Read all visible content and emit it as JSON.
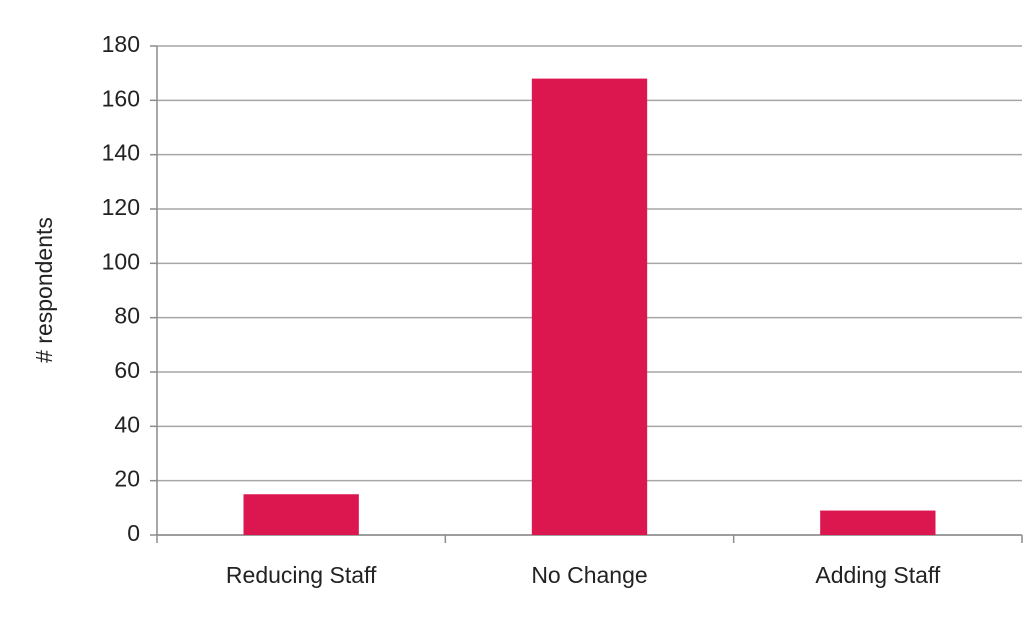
{
  "chart_data": {
    "type": "bar",
    "y_label": "# respondents",
    "categories": [
      "Reducing Staff",
      "No Change",
      "Adding Staff"
    ],
    "values": [
      15,
      168,
      9
    ],
    "color": "#dc1750",
    "ylim": [
      0,
      180
    ],
    "yticks": [
      0,
      20,
      40,
      60,
      80,
      100,
      120,
      140,
      160,
      180
    ],
    "grid": true
  }
}
